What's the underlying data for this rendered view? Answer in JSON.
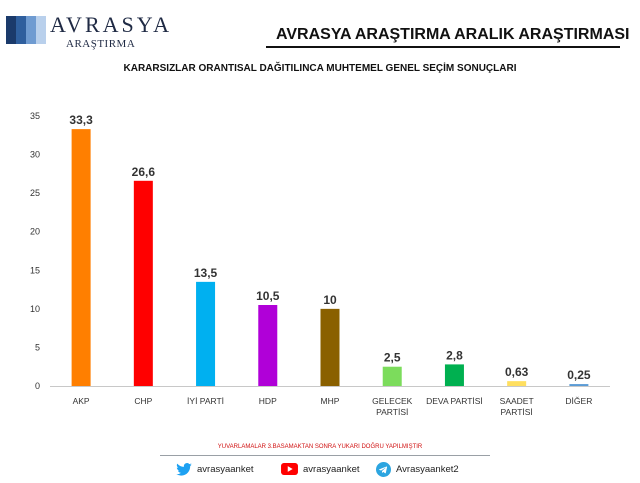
{
  "brand": {
    "name": "AVRASYA",
    "subtitle": "ARAŞTIRMA",
    "logo_colors": [
      "#1b3a6b",
      "#2f5f9e",
      "#6f9bd1",
      "#b9d0ec"
    ]
  },
  "header": {
    "title": "AVRASYA ARAŞTIRMA ARALIK ARAŞTIRMASI"
  },
  "chart_data": {
    "type": "bar",
    "title": "KARARSIZLAR ORANTISAL DAĞITILINCA MUHTEMEL GENEL SEÇİM SONUÇLARI",
    "xlabel": "",
    "ylabel": "",
    "ylim": [
      0,
      35
    ],
    "yticks": [
      0,
      5,
      10,
      15,
      20,
      25,
      30,
      35
    ],
    "grid": false,
    "categories": [
      [
        "AKP"
      ],
      [
        "CHP"
      ],
      [
        "İYİ PARTİ"
      ],
      [
        "HDP"
      ],
      [
        "MHP"
      ],
      [
        "GELECEK",
        "PARTİSİ"
      ],
      [
        "DEVA PARTİSİ"
      ],
      [
        "SAADET",
        "PARTİSİ"
      ],
      [
        "DİĞER"
      ]
    ],
    "values": [
      33.3,
      26.6,
      13.5,
      10.5,
      10,
      2.5,
      2.8,
      0.63,
      0.25
    ],
    "value_labels": [
      "33,3",
      "26,6",
      "13,5",
      "10,5",
      "10",
      "2,5",
      "2,8",
      "0,63",
      "0,25"
    ],
    "colors": [
      "#ff7f00",
      "#ff0000",
      "#00b0f0",
      "#b000d8",
      "#8a6000",
      "#7cdc5c",
      "#00b050",
      "#ffdf60",
      "#5b9bd5"
    ]
  },
  "footnote": "YUVARLAMALAR 3.BASAMAKTAN SONRA YUKARI DOĞRU YAPILMIŞTIR",
  "social": {
    "twitter": {
      "handle": "avrasyaanket",
      "icon": "twitter-icon",
      "color": "#1da1f2"
    },
    "youtube": {
      "handle": "avrasyaanket",
      "icon": "youtube-icon",
      "color": "#ff0000"
    },
    "telegram": {
      "handle": "Avrasyaanket2",
      "icon": "telegram-icon",
      "color": "#2ca5e0"
    }
  }
}
